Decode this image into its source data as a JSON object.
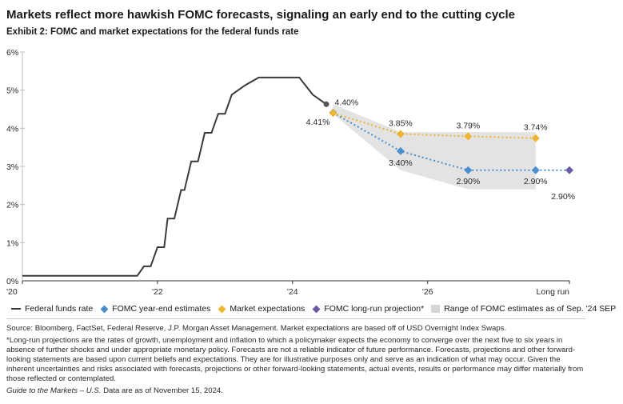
{
  "title": "Markets reflect more hawkish FOMC forecasts, signaling an early end to the cutting cycle",
  "subtitle": "Exhibit 2: FOMC and market expectations for the federal funds rate",
  "colors": {
    "ffr": "#3a3a3a",
    "fomc": "#4a8fcd",
    "market": "#f0b531",
    "longrun": "#6b5aa8",
    "range": "#e3e3e3",
    "grid": "#cfcfcf"
  },
  "chart_data": {
    "type": "line",
    "ylim": [
      0,
      6
    ],
    "y_ticks": [
      0,
      1,
      2,
      3,
      4,
      5,
      6
    ],
    "y_tick_labels": [
      "0%",
      "1%",
      "2%",
      "3%",
      "4%",
      "5%",
      "6%"
    ],
    "x_ticks": [
      2020,
      2022,
      2024,
      2026
    ],
    "x_tick_labels": [
      "'20",
      "'22",
      "'24",
      "'26",
      "Long run"
    ],
    "xlim": [
      2020,
      2028.1
    ],
    "long_run_x": 2028.1,
    "series": [
      {
        "name": "Federal funds rate",
        "type": "step",
        "x": [
          2020.0,
          2021.7,
          2021.8,
          2021.9,
          2022.0,
          2022.1,
          2022.15,
          2022.25,
          2022.35,
          2022.4,
          2022.5,
          2022.6,
          2022.7,
          2022.8,
          2022.9,
          2023.0,
          2023.1,
          2023.3,
          2023.5,
          2023.7,
          2023.9,
          2024.1,
          2024.3,
          2024.5
        ],
        "y": [
          0.13,
          0.13,
          0.38,
          0.38,
          0.88,
          0.88,
          1.63,
          1.63,
          2.38,
          2.38,
          3.13,
          3.13,
          3.88,
          3.88,
          4.38,
          4.38,
          4.88,
          5.13,
          5.33,
          5.33,
          5.33,
          5.33,
          4.88,
          4.63
        ]
      },
      {
        "name": "FOMC year-end estimates",
        "x": [
          2024.6,
          2025.6,
          2026.6,
          2027.6
        ],
        "y": [
          4.41,
          3.4,
          2.9,
          2.9
        ],
        "labels": [
          "4.41%",
          "3.40%",
          "2.90%",
          "2.90%"
        ]
      },
      {
        "name": "Market expectations",
        "x": [
          2024.6,
          2025.6,
          2026.6,
          2027.6
        ],
        "y": [
          4.4,
          3.85,
          3.79,
          3.74
        ],
        "labels": [
          "4.40%",
          "3.85%",
          "3.79%",
          "3.74%"
        ]
      },
      {
        "name": "FOMC long-run projection*",
        "x": [
          2028.1
        ],
        "y": [
          2.9
        ],
        "labels": [
          "2.90%"
        ]
      }
    ],
    "range": {
      "name": "Range of FOMC estimates as of Sep. '24 SEP",
      "x": [
        2024.6,
        2025.6,
        2026.6,
        2027.6
      ],
      "high": [
        4.63,
        3.9,
        3.9,
        3.9
      ],
      "low": [
        4.38,
        2.9,
        2.4,
        2.4
      ]
    }
  },
  "legend": [
    {
      "label": "Federal funds rate",
      "kind": "line",
      "color": "#3a3a3a"
    },
    {
      "label": "FOMC year-end estimates",
      "kind": "diamond",
      "color": "#4a8fcd"
    },
    {
      "label": "Market expectations",
      "kind": "diamond",
      "color": "#f0b531"
    },
    {
      "label": "FOMC long-run projection*",
      "kind": "diamond",
      "color": "#6b5aa8"
    },
    {
      "label": "Range of FOMC estimates as of Sep. '24 SEP",
      "kind": "rect",
      "color": "#d6d6d6"
    }
  ],
  "footnotes": {
    "source": "Source: Bloomberg, FactSet, Federal Reserve, J.P. Morgan Asset Management. Market expectations are based off of USD Overnight Index Swaps.",
    "longrun_note": "*Long-run projections are the rates of growth, unemployment and inflation to which a policymaker expects the economy to converge over the next five to six years in absence of further shocks and under appropriate monetary policy. Forecasts are not a reliable indicator of future performance. Forecasts, projections and other forward-looking statements are based upon current beliefs and expectations. They are for illustrative purposes only and serve as an indication of what may occur. Given the inherent uncertainties and risks associated with forecasts, projections or other forward-looking statements, actual events, results or performance may differ materially from those reflected or contemplated.",
    "guide_title": "Guide to the Markets – U.S.",
    "guide_date": "Data are as of November 15, 2024."
  }
}
